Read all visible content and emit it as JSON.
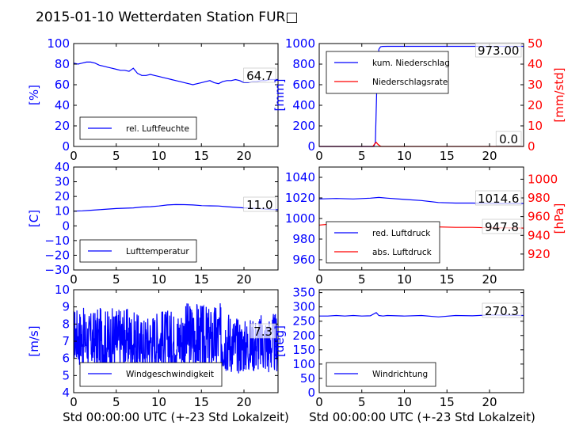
{
  "title": "2015-01-10 Wetterdaten Station FUR□",
  "xlabel": "Std 00:00:00 UTC (+-23 Std Lokalzeit)",
  "colors": {
    "blue": "#0000ff",
    "red": "#ff0000",
    "axis": "#000000"
  },
  "chart_data": [
    {
      "type": "line",
      "xlim": [
        0,
        24
      ],
      "xticks": [
        0,
        5,
        10,
        15,
        20
      ],
      "ylim": [
        0,
        100
      ],
      "yticks": [
        0,
        20,
        40,
        60,
        80,
        100
      ],
      "ylabel": "[%]",
      "value_label": "64.7",
      "series": [
        {
          "name": "rel. Luftfeuchte",
          "color": "#0000ff",
          "x": [
            0,
            0.5,
            1,
            1.5,
            2,
            2.5,
            3,
            3.5,
            4,
            4.5,
            5,
            5.5,
            6,
            6.5,
            7,
            7.5,
            8,
            8.5,
            9,
            9.5,
            10,
            10.5,
            11,
            11.5,
            12,
            12.5,
            13,
            13.5,
            14,
            14.5,
            15,
            15.5,
            16,
            16.5,
            17,
            17.5,
            18,
            18.5,
            19,
            19.5,
            20,
            20.5,
            21,
            21.5,
            22,
            22.5,
            23,
            23.5,
            24
          ],
          "y": [
            81,
            80,
            81,
            82,
            82,
            81,
            79,
            78,
            77,
            76,
            75,
            74,
            74,
            73,
            76,
            71,
            69,
            69,
            70,
            69,
            68,
            67,
            66,
            65,
            64,
            63,
            62,
            61,
            60,
            61,
            62,
            63,
            64,
            62,
            61,
            63,
            64,
            64,
            65,
            64,
            62,
            62,
            63,
            63,
            64,
            64,
            65,
            65,
            65
          ]
        }
      ]
    },
    {
      "type": "line",
      "xlim": [
        0,
        24
      ],
      "xticks": [
        0,
        5,
        10,
        15,
        20
      ],
      "ylim": [
        0,
        1000
      ],
      "yticks": [
        0,
        200,
        400,
        600,
        800,
        1000
      ],
      "ylabel": "[mm]",
      "ylim_right": [
        0,
        50
      ],
      "yticks_right": [
        0,
        10,
        20,
        30,
        40,
        50
      ],
      "ylabel_right": "[mm/std]",
      "value_label": "973.00",
      "value_label_right": "0.0",
      "series": [
        {
          "name": "kum. Niederschlag",
          "color": "#0000ff",
          "axis": "left",
          "x": [
            0,
            6.4,
            6.6,
            6.8,
            7.0,
            7.2,
            7.4,
            8,
            10,
            12,
            14,
            16,
            18,
            20,
            22,
            24
          ],
          "y": [
            0,
            0,
            40,
            700,
            945,
            968,
            972,
            973,
            973,
            973,
            973,
            973,
            973,
            973,
            973,
            973
          ]
        },
        {
          "name": "Niederschlagsrate",
          "color": "#ff0000",
          "axis": "right",
          "x": [
            0,
            6.3,
            6.5,
            6.7,
            6.9,
            7.1,
            7.3,
            8,
            12,
            16,
            20,
            24
          ],
          "y": [
            0,
            0,
            1.2,
            2.0,
            1.0,
            0.4,
            0,
            0,
            0,
            0,
            0,
            0
          ]
        }
      ]
    },
    {
      "type": "line",
      "xlim": [
        0,
        24
      ],
      "xticks": [
        0,
        5,
        10,
        15,
        20
      ],
      "ylim": [
        -30,
        40
      ],
      "yticks": [
        -30,
        -20,
        -10,
        0,
        10,
        20,
        30,
        40
      ],
      "ylabel": "[C]",
      "value_label": "11.0",
      "series": [
        {
          "name": "Lufttemperatur",
          "color": "#0000ff",
          "x": [
            0,
            1,
            2,
            3,
            4,
            5,
            6,
            7,
            8,
            9,
            10,
            11,
            12,
            13,
            14,
            15,
            16,
            17,
            18,
            19,
            20,
            21,
            22,
            23,
            24
          ],
          "y": [
            10,
            10.2,
            10.6,
            11,
            11.4,
            11.8,
            12,
            12.2,
            12.8,
            13,
            13.5,
            14.2,
            14.5,
            14.4,
            14.2,
            13.8,
            13.6,
            13.5,
            13,
            12.6,
            12.2,
            12,
            11.6,
            11.2,
            11
          ]
        }
      ]
    },
    {
      "type": "line",
      "xlim": [
        0,
        24
      ],
      "xticks": [
        0,
        5,
        10,
        15,
        20
      ],
      "ylim": [
        950,
        1050
      ],
      "yticks": [
        960,
        980,
        1000,
        1020,
        1040
      ],
      "ylabel": "",
      "ylim_right": [
        903,
        1013
      ],
      "yticks_right": [
        920,
        940,
        960,
        980,
        1000
      ],
      "ylabel_right": "[hPa]",
      "value_label": "1014.6",
      "value_label_right": "947.8",
      "series": [
        {
          "name": "red. Luftdruck",
          "color": "#0000ff",
          "axis": "left",
          "x": [
            0,
            2,
            4,
            6,
            7,
            8,
            10,
            12,
            14,
            16,
            18,
            20,
            22,
            24
          ],
          "y": [
            1019,
            1019.5,
            1019,
            1019.8,
            1020.5,
            1019.8,
            1018.5,
            1017.5,
            1015.5,
            1015,
            1015,
            1014.8,
            1014.6,
            1014.6
          ]
        },
        {
          "name": "abs. Luftdruck",
          "color": "#ff0000",
          "axis": "right",
          "x": [
            0,
            2,
            4,
            6,
            7,
            8,
            10,
            12,
            14,
            16,
            18,
            20,
            22,
            24
          ],
          "y": [
            951,
            952.5,
            952.5,
            953,
            953.5,
            952.5,
            951,
            950,
            949,
            948.5,
            948.5,
            948,
            948,
            947.8
          ]
        }
      ]
    },
    {
      "type": "line",
      "xlim": [
        0,
        24
      ],
      "xticks": [
        0,
        5,
        10,
        15,
        20
      ],
      "ylim": [
        4,
        10
      ],
      "yticks": [
        4,
        5,
        6,
        7,
        8,
        9,
        10
      ],
      "ylabel": "[m/s]",
      "value_label": "7.3",
      "noisy": true,
      "series": [
        {
          "name": "Windgeschwindigkeit",
          "color": "#0000ff",
          "x": [
            0,
            1,
            2,
            3,
            4,
            5,
            6,
            7,
            8,
            9,
            10,
            11,
            12,
            13,
            14,
            15,
            16,
            17,
            18,
            19,
            20,
            21,
            22,
            23,
            24
          ],
          "y": [
            7.4,
            7.2,
            7.0,
            7.1,
            6.9,
            7.0,
            7.2,
            7.0,
            6.8,
            7.0,
            7.1,
            7.0,
            7.0,
            7.2,
            7.3,
            7.1,
            7.0,
            7.2,
            7.1,
            6.8,
            6.7,
            6.8,
            6.9,
            6.8,
            6.9
          ],
          "spread": [
            1.6,
            1.8,
            1.7,
            1.9,
            2.0,
            2.1,
            1.8,
            1.8,
            1.6,
            1.7,
            1.8,
            1.9,
            1.8,
            2.0,
            2.2,
            2.1,
            2.0,
            2.1,
            1.9,
            1.7,
            1.6,
            1.6,
            1.7,
            1.8,
            1.8
          ]
        }
      ]
    },
    {
      "type": "line",
      "xlim": [
        0,
        24
      ],
      "xticks": [
        0,
        5,
        10,
        15,
        20
      ],
      "ylim": [
        0,
        360
      ],
      "yticks": [
        0,
        50,
        100,
        150,
        200,
        250,
        300,
        350
      ],
      "ylabel": "[deg]",
      "value_label": "270.3",
      "series": [
        {
          "name": "Windrichtung",
          "color": "#0000ff",
          "x": [
            0,
            1,
            2,
            3,
            4,
            5,
            6,
            6.7,
            7,
            7.5,
            8,
            10,
            12,
            14,
            16,
            18,
            20,
            22,
            24
          ],
          "y": [
            268,
            268,
            270,
            268,
            270,
            268,
            269,
            280,
            270,
            268,
            270,
            268,
            270,
            265,
            270,
            269,
            272,
            271,
            270
          ]
        }
      ]
    }
  ]
}
